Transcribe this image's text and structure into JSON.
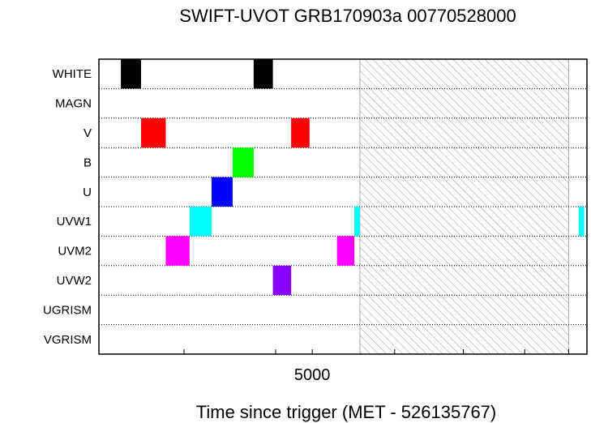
{
  "chart_data": {
    "type": "timeline",
    "title": "SWIFT-UVOT GRB170903a 00770528000",
    "xlabel": "Time since trigger (MET - 526135767)",
    "ylabel": "",
    "xlim": [
      2670,
      8000
    ],
    "x_ticks": [
      3600,
      4600,
      5000,
      5900,
      6650,
      7320,
      7800
    ],
    "x_tick_labels": [
      {
        "value": 5000,
        "label": "5000"
      }
    ],
    "categories": [
      "WHITE",
      "MAGN",
      "V",
      "B",
      "U",
      "UVW1",
      "UVM2",
      "UVW2",
      "UGRISM",
      "VGRISM"
    ],
    "grid": true,
    "gap_region": [
      5520,
      7800
    ],
    "exposures": [
      {
        "filter": "WHITE",
        "color": "#000000",
        "start": 2910,
        "end": 3130
      },
      {
        "filter": "WHITE",
        "color": "#000000",
        "start": 4360,
        "end": 4570
      },
      {
        "filter": "V",
        "color": "#ff0000",
        "start": 3130,
        "end": 3400
      },
      {
        "filter": "V",
        "color": "#ff0000",
        "start": 4770,
        "end": 4970
      },
      {
        "filter": "B",
        "color": "#00ff00",
        "start": 4130,
        "end": 4360
      },
      {
        "filter": "U",
        "color": "#0000ff",
        "start": 3900,
        "end": 4130
      },
      {
        "filter": "UVW1",
        "color": "#00ffff",
        "start": 3660,
        "end": 3900
      },
      {
        "filter": "UVW1",
        "color": "#00ffff",
        "start": 5460,
        "end": 5520
      },
      {
        "filter": "UVW1",
        "color": "#00ffff",
        "start": 7910,
        "end": 7970
      },
      {
        "filter": "UVM2",
        "color": "#ff00ff",
        "start": 3400,
        "end": 3660
      },
      {
        "filter": "UVM2",
        "color": "#ff00ff",
        "start": 5270,
        "end": 5460
      },
      {
        "filter": "UVW2",
        "color": "#8800ff",
        "start": 4570,
        "end": 4770
      }
    ]
  }
}
